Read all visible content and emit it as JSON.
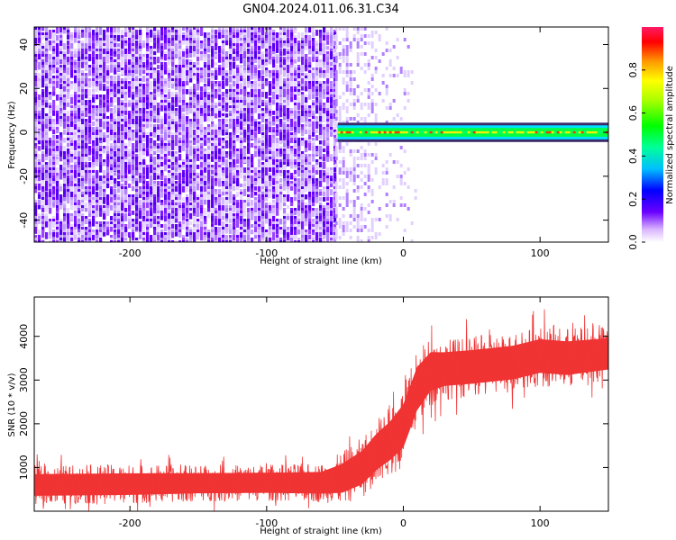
{
  "title": "GN04.2024.011.06.31.C34",
  "chart_data": [
    {
      "type": "heatmap",
      "xlabel": "Height of straight line (km)",
      "ylabel": "Frequency (Hz)",
      "xlim": [
        -270,
        150
      ],
      "ylim": [
        -50,
        48
      ],
      "x_ticks": [
        -200,
        -100,
        0,
        100
      ],
      "x_tick_labels": [
        "-200",
        "-100",
        "0",
        "100"
      ],
      "y_ticks": [
        -40,
        -20,
        0,
        20,
        40
      ],
      "y_tick_labels": [
        "-40",
        "-20",
        "0",
        "20",
        "40"
      ],
      "noise_region_x": [
        -270,
        -50
      ],
      "signal_band": {
        "x_start": -48,
        "x_end": 150,
        "freq_center": 0,
        "freq_halfwidth": 2
      },
      "colorbar": {
        "label": "Normalized spectral amplitude",
        "range": [
          0,
          1
        ],
        "ticks": [
          0,
          0.2,
          0.4,
          0.6,
          0.8
        ],
        "tick_labels": [
          "0.0",
          "0.2",
          "0.4",
          "0.6",
          "0.8"
        ]
      }
    },
    {
      "type": "line",
      "xlabel": "Height of straight line (km)",
      "ylabel": "SNR (10 * v/v)",
      "xlim": [
        -270,
        150
      ],
      "ylim": [
        0,
        4900
      ],
      "x_ticks": [
        -200,
        -100,
        0,
        100
      ],
      "x_tick_labels": [
        "-200",
        "-100",
        "0",
        "100"
      ],
      "y_ticks": [
        1000,
        2000,
        3000,
        4000
      ],
      "y_tick_labels": [
        "1000",
        "2000",
        "3000",
        "4000"
      ],
      "color": "#f03333",
      "series": [
        {
          "x": [
            -270,
            -200,
            -150,
            -100,
            -60,
            -45,
            -30,
            -20,
            -10,
            0,
            10,
            20,
            30,
            50,
            80,
            100,
            120,
            150
          ],
          "values": [
            600,
            620,
            640,
            650,
            650,
            750,
            1000,
            1350,
            1600,
            1950,
            2800,
            3200,
            3250,
            3300,
            3400,
            3550,
            3500,
            3600
          ],
          "spread": [
            450,
            450,
            420,
            420,
            450,
            600,
            700,
            750,
            800,
            900,
            900,
            800,
            700,
            700,
            700,
            700,
            700,
            650
          ]
        }
      ]
    }
  ]
}
